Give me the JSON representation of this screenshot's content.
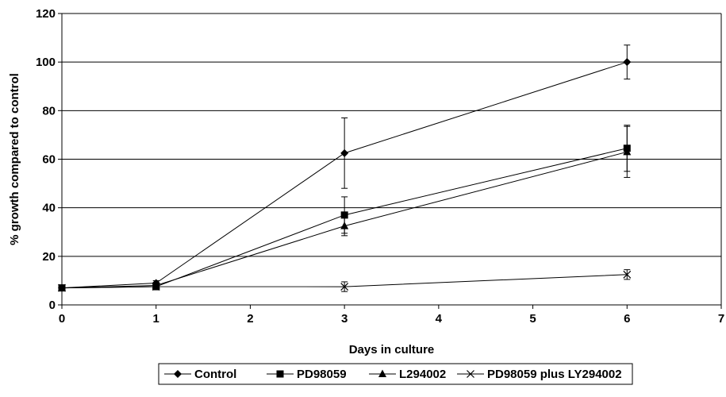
{
  "chart_data": {
    "type": "line",
    "xlabel": "Days in culture",
    "ylabel": "% growth compared to control",
    "xlim": [
      0,
      7
    ],
    "ylim": [
      0,
      120
    ],
    "x_ticks": [
      0,
      1,
      2,
      3,
      4,
      5,
      6,
      7
    ],
    "y_ticks": [
      0,
      20,
      40,
      60,
      80,
      100,
      120
    ],
    "grid": "horizontal",
    "legend_position": "bottom",
    "series": [
      {
        "name": "Control",
        "marker": "diamond",
        "x": [
          0,
          1,
          3,
          6
        ],
        "y": [
          7,
          9,
          62.5,
          100
        ],
        "error": [
          0.5,
          1,
          14.5,
          7
        ]
      },
      {
        "name": "PD98059",
        "marker": "square",
        "x": [
          0,
          1,
          3,
          6
        ],
        "y": [
          7,
          7.5,
          37,
          64.5
        ],
        "error": [
          0.5,
          0.8,
          7.5,
          9.5
        ]
      },
      {
        "name": "L294002",
        "marker": "triangle",
        "x": [
          0,
          1,
          3,
          6
        ],
        "y": [
          7,
          8,
          32.5,
          63
        ],
        "error": [
          0.5,
          0.8,
          4,
          10.5
        ]
      },
      {
        "name": "PD98059 plus LY294002",
        "marker": "x",
        "x": [
          0,
          1,
          3,
          6
        ],
        "y": [
          7,
          7.5,
          7.5,
          12.5
        ],
        "error": [
          0.5,
          0.5,
          2,
          2
        ]
      }
    ]
  }
}
